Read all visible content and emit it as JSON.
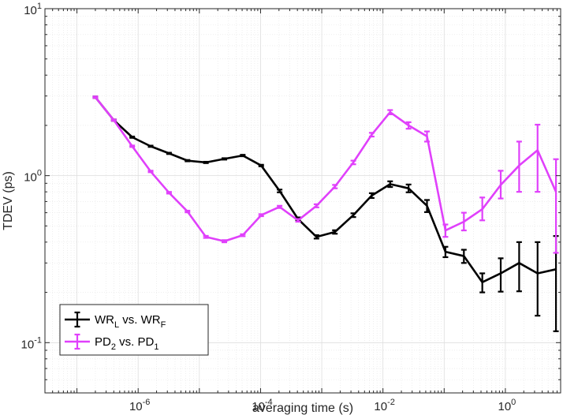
{
  "chart_data": {
    "type": "line",
    "title": "",
    "xlabel": "averaging time (s)",
    "ylabel": "TDEV (ps)",
    "xscale": "log",
    "yscale": "log",
    "xlim": [
      3e-08,
      8
    ],
    "ylim": [
      0.05,
      10
    ],
    "grid": true,
    "legend_position": "bottom-left",
    "x_ticks": [
      {
        "value": 1e-06,
        "base": "10",
        "exp": "-6"
      },
      {
        "value": 0.0001,
        "base": "10",
        "exp": "-4"
      },
      {
        "value": 0.01,
        "base": "10",
        "exp": "-2"
      },
      {
        "value": 1,
        "base": "10",
        "exp": "0"
      }
    ],
    "y_ticks": [
      {
        "value": 0.1,
        "base": "10",
        "exp": "-1"
      },
      {
        "value": 1,
        "base": "10",
        "exp": "0"
      },
      {
        "value": 10,
        "base": "10",
        "exp": "1"
      }
    ],
    "series": [
      {
        "name": "WR_L vs. WR_F",
        "legend": {
          "a": "WR",
          "a_sub": "L",
          "mid": " vs. WR",
          "b_sub": "F"
        },
        "color": "#000000",
        "x": [
          2e-07,
          4e-07,
          8e-07,
          1.6e-06,
          3.2e-06,
          6.4e-06,
          1.28e-05,
          2.56e-05,
          5.12e-05,
          0.0001024,
          0.000205,
          0.00041,
          0.00082,
          0.00164,
          0.00328,
          0.00655,
          0.0131,
          0.0262,
          0.0524,
          0.105,
          0.21,
          0.42,
          0.84,
          1.68,
          3.36,
          6.71
        ],
        "y": [
          2.95,
          2.15,
          1.7,
          1.5,
          1.36,
          1.23,
          1.2,
          1.26,
          1.32,
          1.15,
          0.81,
          0.55,
          0.43,
          0.46,
          0.58,
          0.76,
          0.89,
          0.84,
          0.66,
          0.35,
          0.33,
          0.23,
          0.26,
          0.3,
          0.26,
          0.275
        ],
        "err_low": [
          0.03,
          0.02,
          0.015,
          0.013,
          0.012,
          0.011,
          0.011,
          0.012,
          0.013,
          0.012,
          0.015,
          0.012,
          0.01,
          0.011,
          0.015,
          0.025,
          0.035,
          0.045,
          0.055,
          0.025,
          0.03,
          0.03,
          0.058,
          0.097,
          0.115,
          0.158
        ],
        "err_high": [
          0.03,
          0.02,
          0.015,
          0.013,
          0.012,
          0.011,
          0.011,
          0.012,
          0.013,
          0.012,
          0.015,
          0.012,
          0.01,
          0.011,
          0.015,
          0.025,
          0.035,
          0.045,
          0.055,
          0.025,
          0.03,
          0.03,
          0.06,
          0.1,
          0.14,
          0.16
        ]
      },
      {
        "name": "PD_2 vs. PD_1",
        "legend": {
          "a": "PD",
          "a_sub": "2",
          "mid": " vs. PD",
          "b_sub": "1"
        },
        "color": "#e040fb",
        "x": [
          2e-07,
          4e-07,
          8e-07,
          1.6e-06,
          3.2e-06,
          6.4e-06,
          1.28e-05,
          2.56e-05,
          5.12e-05,
          0.0001024,
          0.000205,
          0.00041,
          0.00082,
          0.00164,
          0.00328,
          0.00655,
          0.0131,
          0.0262,
          0.0524,
          0.105,
          0.21,
          0.42,
          0.84,
          1.68,
          3.36,
          6.71
        ],
        "y": [
          2.95,
          2.15,
          1.5,
          1.06,
          0.79,
          0.61,
          0.43,
          0.405,
          0.44,
          0.58,
          0.65,
          0.54,
          0.66,
          0.86,
          1.2,
          1.76,
          2.4,
          2.0,
          1.72,
          0.47,
          0.53,
          0.63,
          0.88,
          1.15,
          1.42,
          0.8
        ],
        "err_low": [
          0.03,
          0.02,
          0.015,
          0.011,
          0.009,
          0.007,
          0.006,
          0.006,
          0.006,
          0.008,
          0.01,
          0.01,
          0.014,
          0.02,
          0.03,
          0.045,
          0.07,
          0.09,
          0.12,
          0.04,
          0.06,
          0.09,
          0.15,
          0.35,
          0.62,
          0.455
        ],
        "err_high": [
          0.03,
          0.02,
          0.015,
          0.011,
          0.009,
          0.007,
          0.006,
          0.006,
          0.006,
          0.008,
          0.01,
          0.01,
          0.014,
          0.02,
          0.03,
          0.045,
          0.07,
          0.09,
          0.12,
          0.04,
          0.07,
          0.11,
          0.19,
          0.45,
          0.6,
          0.455
        ]
      }
    ]
  }
}
